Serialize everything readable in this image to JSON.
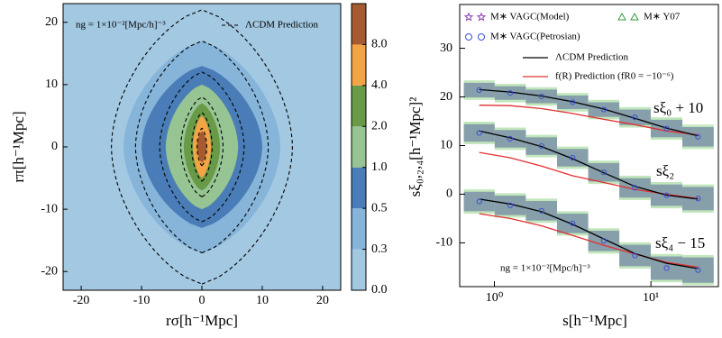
{
  "chart_data": [
    {
      "type": "contour",
      "annotation": "ng = 1×10⁻²[Mpc/h]⁻³",
      "legend_label": "ΛCDM Prediction",
      "xlabel": "rσ[h⁻¹Mpc]",
      "ylabel": "rπ[h⁻¹Mpc]",
      "xlim": [
        -23,
        23
      ],
      "ylim": [
        -23,
        23
      ],
      "xticks": [
        -20,
        -10,
        0,
        10,
        20
      ],
      "yticks": [
        -20,
        -10,
        0,
        10,
        20
      ],
      "levels": [
        {
          "value": 0,
          "label": "0.0"
        },
        0.3,
        0.5,
        {
          "value": 1,
          "label": "1.0"
        },
        {
          "value": 2,
          "label": "2.0"
        },
        {
          "value": 4,
          "label": "4.0"
        },
        {
          "value": 8,
          "label": "8.0"
        }
      ],
      "colors": [
        "#a3c8e2",
        "#87b5da",
        "#4a7db7",
        "#97c493",
        "#689a47",
        "#f3a444",
        "#a65a31"
      ],
      "contour_half_width": [
        13,
        10,
        6,
        3,
        1.5,
        0.8
      ],
      "contour_half_height": [
        17,
        13,
        10,
        7,
        5,
        2.5
      ],
      "prediction_half_width": [
        15,
        11,
        7,
        3.5,
        1.7,
        0.8
      ],
      "prediction_half_height": [
        22,
        17,
        12,
        8,
        5.5,
        3
      ]
    },
    {
      "type": "line",
      "annotation": "ng = 1×10⁻²[Mpc/h]⁻³",
      "xlabel": "s[h⁻¹Mpc]",
      "ylabel": "sξ₀,₂,₄[h⁻¹Mpc]²",
      "log_x": true,
      "xlim": [
        0.6,
        27
      ],
      "ylim": [
        -19,
        39
      ],
      "xticks": [
        {
          "value": 1,
          "label": "10⁰"
        },
        {
          "value": 10,
          "label": "10¹"
        }
      ],
      "yticks": [
        -10,
        0,
        10,
        20,
        30
      ],
      "legend": [
        {
          "name": "M∗ VAGC(Model)",
          "color": "#8a3fb0"
        },
        {
          "name": "M∗ Y07",
          "color": "#3a9a3a"
        },
        {
          "name": "M∗ VAGC(Petrosian)",
          "color": "#3a4fd0"
        },
        {
          "name": "ΛCDM Prediction",
          "color": "#000000"
        },
        {
          "name": "f(R) Prediction (fR0 = −10⁻⁶)",
          "color": "#e03030"
        }
      ],
      "x": [
        0.8,
        1.26,
        2,
        3.16,
        5,
        7.9,
        12.6,
        20
      ],
      "multipoles": [
        {
          "label": "sξ₀ + 10",
          "petrosian": [
            21.4,
            20.8,
            20.1,
            18.9,
            17.4,
            15.8,
            13.5,
            11.8
          ],
          "model_error": [
            1.5,
            1.4,
            1.4,
            1.4,
            1.5,
            1.6,
            1.8,
            2
          ],
          "y07_error": [
            2,
            1.9,
            1.9,
            1.9,
            2,
            2.1,
            2.3,
            2.5
          ],
          "lcdm": [
            21.5,
            21,
            20.2,
            19,
            17.5,
            15.6,
            13.6,
            12
          ],
          "fr": [
            18.3,
            18.2,
            17.6,
            16.6,
            15.4,
            14.3,
            13,
            12.2
          ]
        },
        {
          "label": "sξ₂",
          "petrosian": [
            12.6,
            11.4,
            9.9,
            7.5,
            4.5,
            1.3,
            -0.2,
            -0.9
          ],
          "model_error": [
            1.8,
            1.8,
            1.8,
            1.8,
            1.9,
            2,
            2.2,
            2.4
          ],
          "y07_error": [
            2.3,
            2.3,
            2.3,
            2.3,
            2.4,
            2.5,
            2.7,
            2.9
          ],
          "lcdm": [
            13,
            11.6,
            9.8,
            7.3,
            4.4,
            1.6,
            -0.2,
            -1
          ],
          "fr": [
            8.6,
            7.5,
            5.8,
            3.8,
            2.4,
            1,
            0,
            -0.9
          ]
        },
        {
          "label": "sξ₄ − 15",
          "petrosian": [
            -1.5,
            -2.3,
            -3.4,
            -6,
            -9.6,
            -12.6,
            -15.2,
            -15.6
          ],
          "model_error": [
            2,
            2,
            2,
            2,
            2.1,
            2.2,
            2.4,
            2.6
          ],
          "y07_error": [
            2.5,
            2.5,
            2.5,
            2.5,
            2.6,
            2.7,
            2.9,
            3.1
          ],
          "lcdm": [
            -1,
            -2,
            -3.6,
            -6.2,
            -9.2,
            -12.2,
            -14.2,
            -15.3
          ],
          "fr": [
            -4,
            -5,
            -6.5,
            -8.5,
            -10.5,
            -12.3,
            -14,
            -15
          ]
        }
      ]
    }
  ]
}
